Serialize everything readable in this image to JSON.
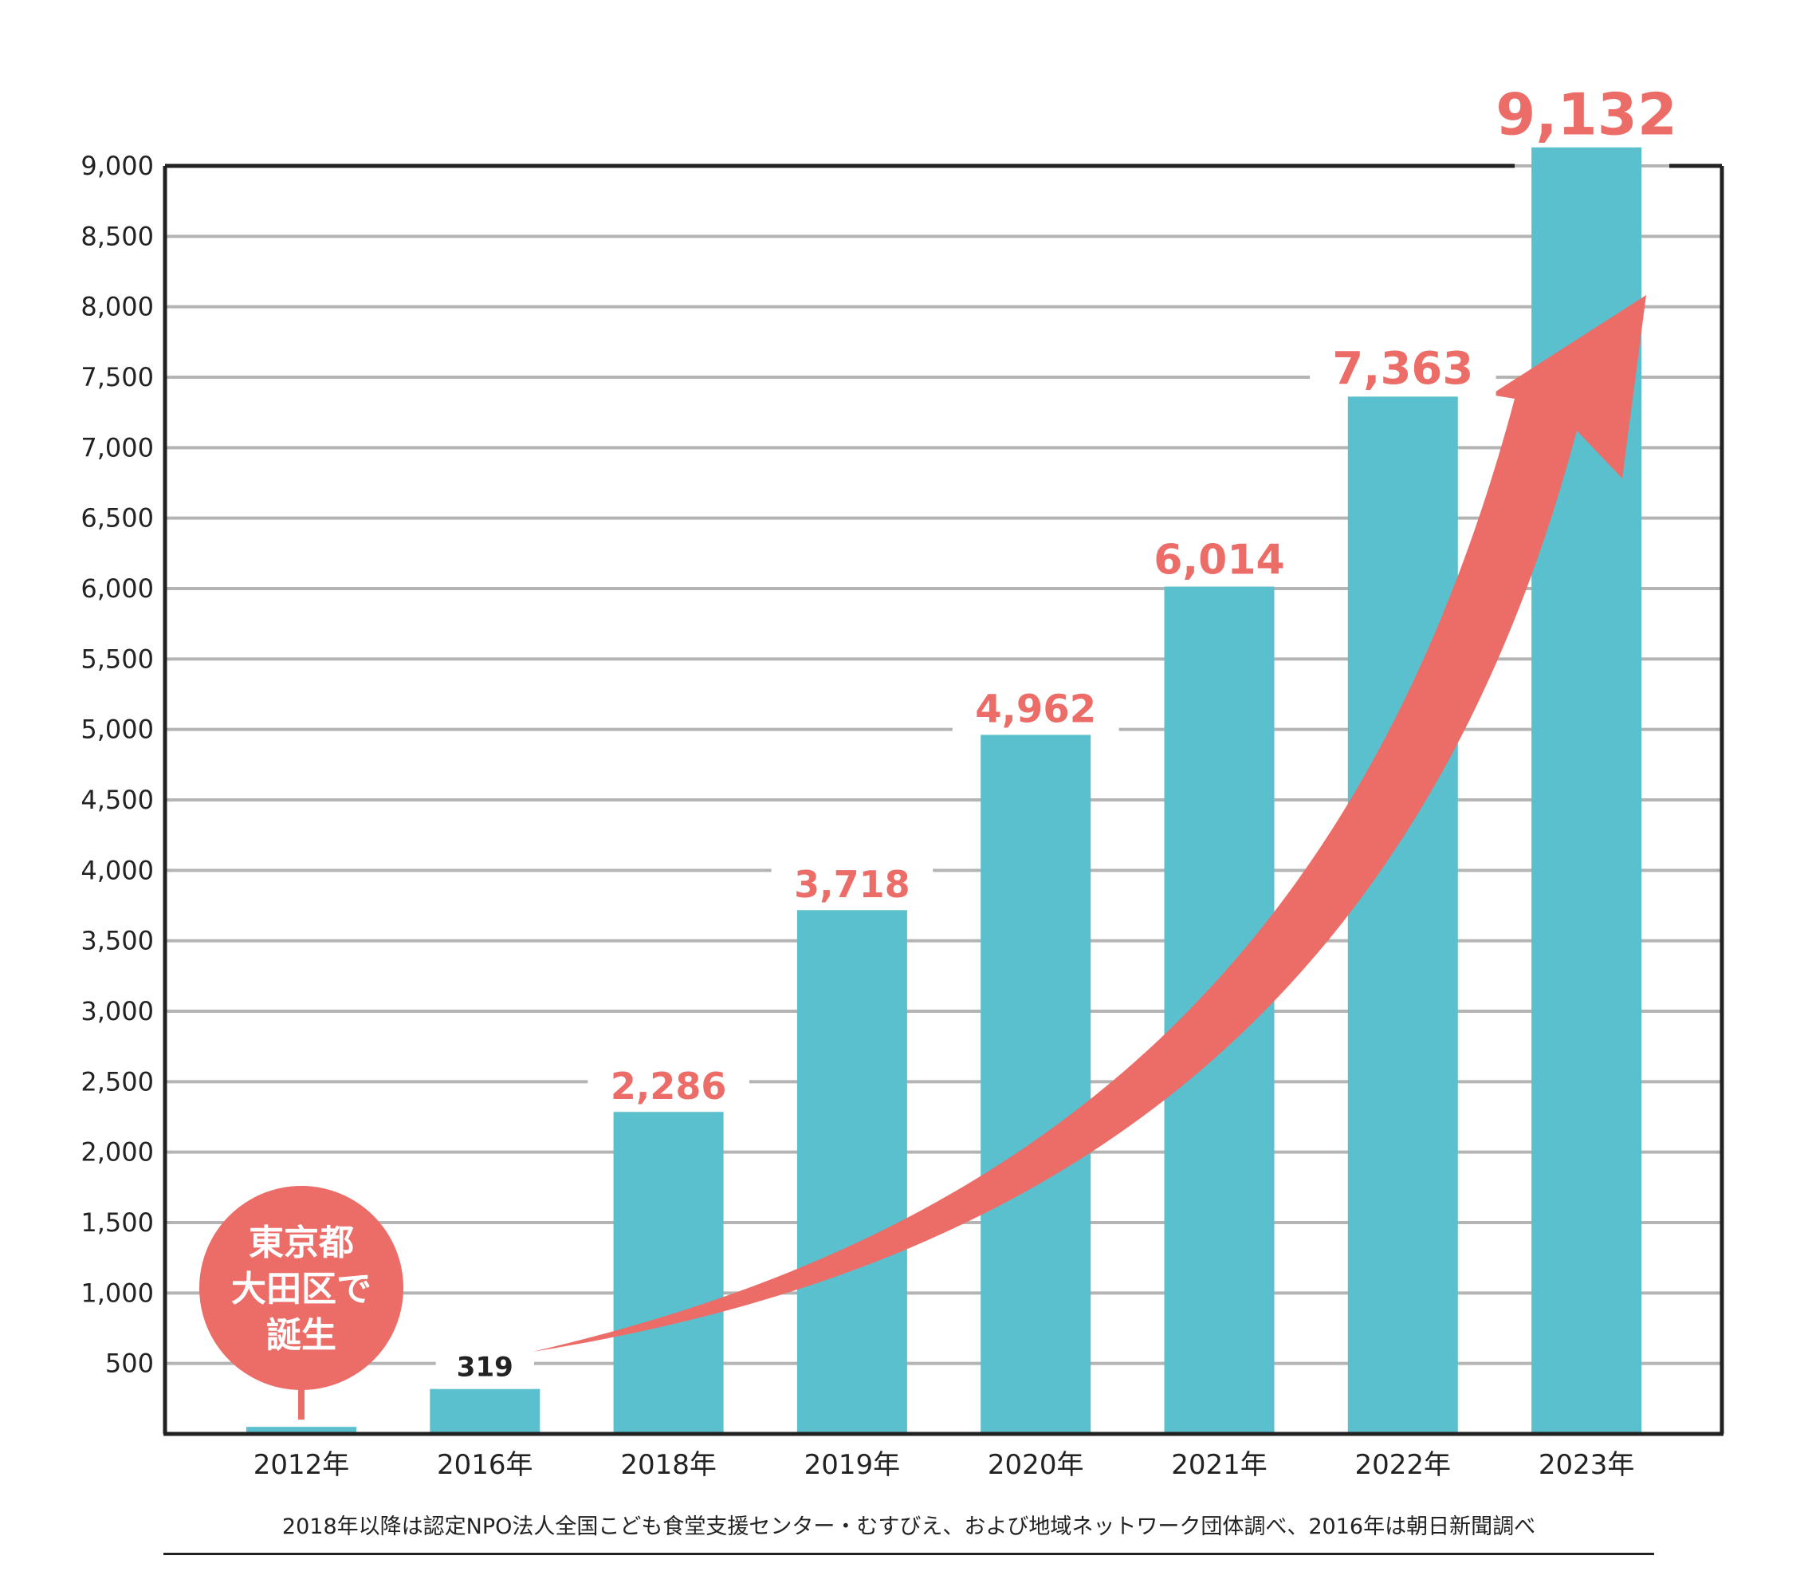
{
  "chart_data": {
    "type": "bar",
    "title": "",
    "xlabel": "",
    "ylabel": "",
    "ylim": [
      0,
      9000
    ],
    "yticks": [
      500,
      1000,
      1500,
      2000,
      2500,
      3000,
      3500,
      4000,
      4500,
      5000,
      5500,
      6000,
      6500,
      7000,
      7500,
      8000,
      8500,
      9000
    ],
    "ytick_labels": [
      "500",
      "1,000",
      "1,500",
      "2,000",
      "2,500",
      "3,000",
      "3,500",
      "4,000",
      "4,500",
      "5,000",
      "5,500",
      "6,000",
      "6,500",
      "7,000",
      "7,500",
      "8,000",
      "8,500",
      "9,000"
    ],
    "grid": true,
    "categories": [
      "2012年",
      "2016年",
      "2018年",
      "2019年",
      "2020年",
      "2021年",
      "2022年",
      "2023年"
    ],
    "values": [
      50,
      319,
      2286,
      3718,
      4962,
      6014,
      7363,
      9132
    ],
    "value_labels": [
      "",
      "319",
      "2,286",
      "3,718",
      "4,962",
      "6,014",
      "7,363",
      "9,132"
    ],
    "bar_color": "#5bc0cd",
    "label_color": "#ec6c67",
    "plain_label_color": "#222222",
    "grid_color": "#b4b4b4",
    "trend_arrow": {
      "from_category": "2016年",
      "to_category": "2023年",
      "color": "#ec6c67"
    },
    "annotation": {
      "lines": [
        "東京都",
        "大田区で",
        "誕生"
      ],
      "category": "2012年",
      "color": "#ec6c67"
    }
  },
  "source_note": "2018年以降は認定NPO法人全国こども食堂支援センター・むすびえ、および地域ネットワーク団体調べ、2016年は朝日新聞調べ"
}
